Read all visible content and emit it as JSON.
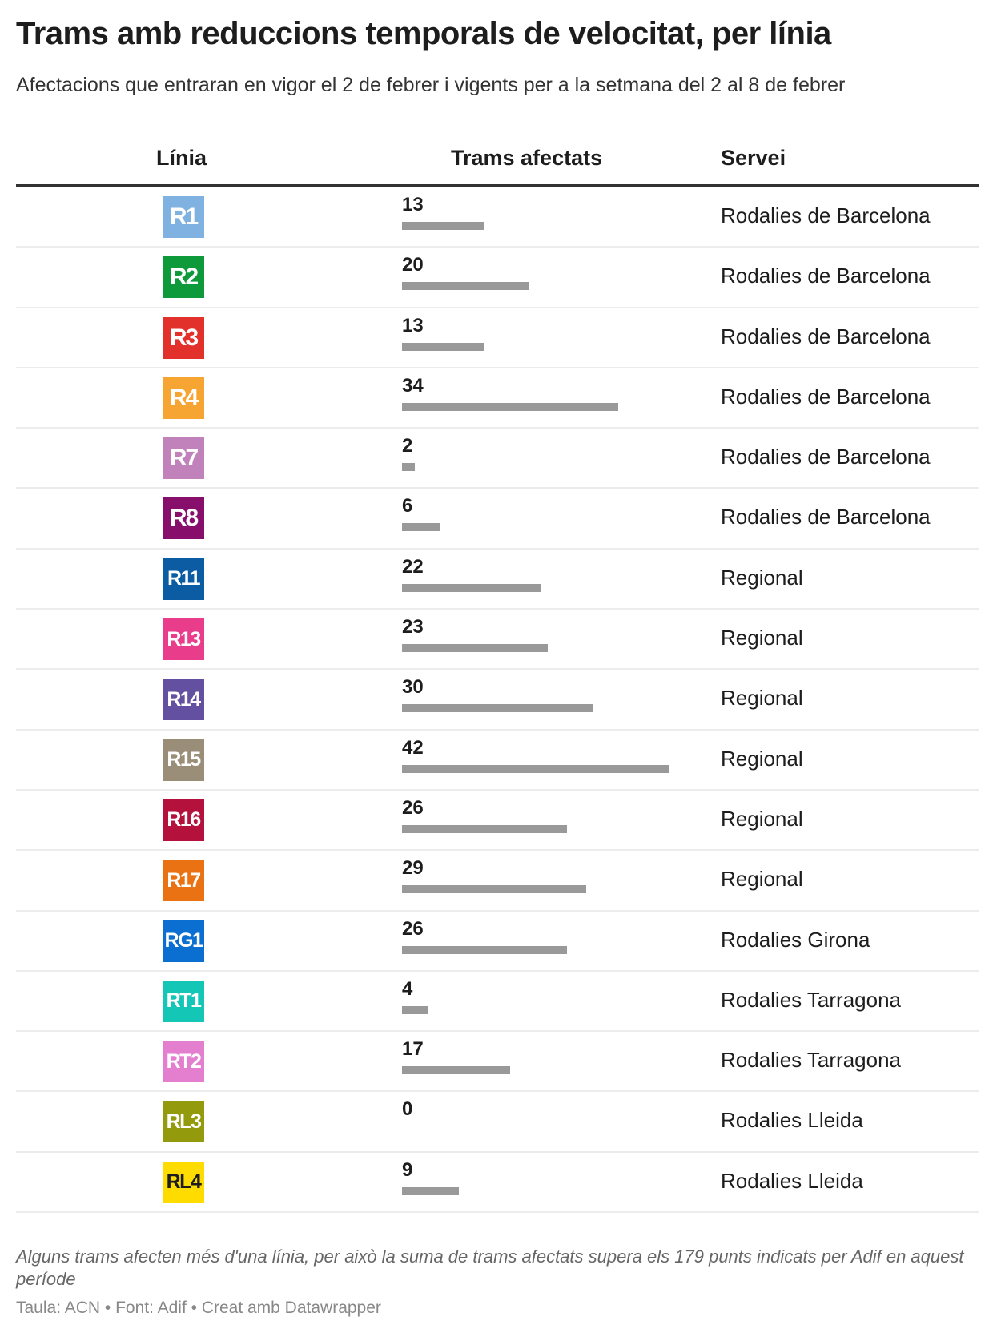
{
  "title": "Trams amb reduccions temporals de velocitat, per línia",
  "subtitle": "Afectacions que entraran en vigor el 2 de febrer i vigents per a la setmana del 2 al 8 de febrer",
  "headers": {
    "line": "Línia",
    "count": "Trams afectats",
    "service": "Servei"
  },
  "bar_color": "#999999",
  "rows": [
    {
      "line": "R1",
      "color": "#7fb2e0",
      "text_color": "#ffffff",
      "count": 13,
      "service": "Rodalies de Barcelona"
    },
    {
      "line": "R2",
      "color": "#0e9a3b",
      "text_color": "#ffffff",
      "count": 20,
      "service": "Rodalies de Barcelona"
    },
    {
      "line": "R3",
      "color": "#e2302a",
      "text_color": "#ffffff",
      "count": 13,
      "service": "Rodalies de Barcelona"
    },
    {
      "line": "R4",
      "color": "#f6a432",
      "text_color": "#ffffff",
      "count": 34,
      "service": "Rodalies de Barcelona"
    },
    {
      "line": "R7",
      "color": "#c181ba",
      "text_color": "#ffffff",
      "count": 2,
      "service": "Rodalies de Barcelona"
    },
    {
      "line": "R8",
      "color": "#880e6c",
      "text_color": "#ffffff",
      "count": 6,
      "service": "Rodalies de Barcelona"
    },
    {
      "line": "R11",
      "color": "#0c5ca4",
      "text_color": "#ffffff",
      "count": 22,
      "service": "Regional"
    },
    {
      "line": "R13",
      "color": "#e93d8b",
      "text_color": "#ffffff",
      "count": 23,
      "service": "Regional"
    },
    {
      "line": "R14",
      "color": "#6450a1",
      "text_color": "#ffffff",
      "count": 30,
      "service": "Regional"
    },
    {
      "line": "R15",
      "color": "#9b8e78",
      "text_color": "#ffffff",
      "count": 42,
      "service": "Regional"
    },
    {
      "line": "R16",
      "color": "#b4123c",
      "text_color": "#ffffff",
      "count": 26,
      "service": "Regional"
    },
    {
      "line": "R17",
      "color": "#ea7212",
      "text_color": "#ffffff",
      "count": 29,
      "service": "Regional"
    },
    {
      "line": "RG1",
      "color": "#0a6fd0",
      "text_color": "#ffffff",
      "count": 26,
      "service": "Rodalies Girona"
    },
    {
      "line": "RT1",
      "color": "#13c6b5",
      "text_color": "#ffffff",
      "count": 4,
      "service": "Rodalies Tarragona"
    },
    {
      "line": "RT2",
      "color": "#e47fd0",
      "text_color": "#ffffff",
      "count": 17,
      "service": "Rodalies Tarragona"
    },
    {
      "line": "RL3",
      "color": "#939a0b",
      "text_color": "#ffffff",
      "count": 0,
      "service": "Rodalies Lleida"
    },
    {
      "line": "RL4",
      "color": "#fedc00",
      "text_color": "#1d1d1d",
      "count": 9,
      "service": "Rodalies Lleida"
    }
  ],
  "note": "Alguns trams afecten més d'una línia, per això la suma de trams afectats supera els 179 punts indicats per Adif en aquest període",
  "source": "Taula: ACN • Font: Adif • Creat amb Datawrapper"
}
